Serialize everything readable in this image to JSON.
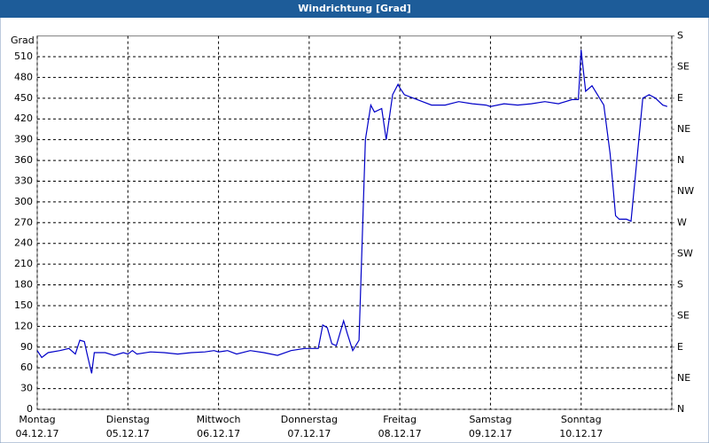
{
  "chart_data": {
    "type": "line",
    "title": "Windrichtung [Grad]",
    "y_label": "Grad",
    "x": [
      0,
      0.05,
      0.12,
      0.25,
      0.35,
      0.42,
      0.47,
      0.52,
      0.55,
      0.6,
      0.63,
      0.75,
      0.85,
      0.95,
      1.0,
      1.05,
      1.1,
      1.25,
      1.4,
      1.55,
      1.7,
      1.85,
      1.95,
      2.0,
      2.1,
      2.2,
      2.35,
      2.5,
      2.65,
      2.8,
      2.95,
      3.0,
      3.1,
      3.15,
      3.2,
      3.25,
      3.3,
      3.38,
      3.42,
      3.48,
      3.55,
      3.62,
      3.68,
      3.72,
      3.8,
      3.85,
      3.92,
      3.98,
      4.0,
      4.05,
      4.15,
      4.25,
      4.35,
      4.5,
      4.65,
      4.8,
      4.95,
      5.0,
      5.15,
      5.3,
      5.45,
      5.6,
      5.75,
      5.9,
      5.97,
      6.0,
      6.05,
      6.12,
      6.25,
      6.32,
      6.38,
      6.42,
      6.5,
      6.55,
      6.68,
      6.75,
      6.82,
      6.9,
      6.95
    ],
    "values": [
      85,
      75,
      82,
      85,
      88,
      80,
      100,
      98,
      80,
      52,
      82,
      82,
      78,
      82,
      80,
      85,
      80,
      83,
      82,
      80,
      82,
      83,
      85,
      83,
      85,
      80,
      85,
      82,
      78,
      85,
      88,
      88,
      88,
      122,
      118,
      95,
      92,
      128,
      110,
      85,
      100,
      390,
      440,
      430,
      435,
      390,
      455,
      470,
      465,
      455,
      450,
      445,
      440,
      440,
      445,
      442,
      440,
      438,
      442,
      440,
      442,
      445,
      442,
      448,
      448,
      520,
      460,
      468,
      440,
      370,
      280,
      275,
      275,
      272,
      450,
      455,
      450,
      440,
      438
    ],
    "color": "#0000c8",
    "xlim": [
      0,
      7
    ],
    "xticks": [
      {
        "value": 0,
        "label": "Montag"
      },
      {
        "value": 1,
        "label": "Dienstag"
      },
      {
        "value": 2,
        "label": "Mittwoch"
      },
      {
        "value": 3,
        "label": "Donnerstag"
      },
      {
        "value": 4,
        "label": "Freitag"
      },
      {
        "value": 5,
        "label": "Samstag"
      },
      {
        "value": 6,
        "label": "Sonntag"
      },
      7
    ],
    "xtick_dates": [
      "04.12.17",
      "05.12.17",
      "06.12.17",
      "07.12.17",
      "08.12.17",
      "09.12.17",
      "10.12.17"
    ],
    "ylim": [
      0,
      540
    ],
    "yticks": [
      0,
      30,
      60,
      90,
      120,
      150,
      180,
      210,
      240,
      270,
      300,
      330,
      360,
      390,
      420,
      450,
      480,
      510
    ],
    "y2lim": [
      0,
      540
    ],
    "y2ticks": [
      {
        "value": 0,
        "label": "N"
      },
      {
        "value": 45,
        "label": "NE"
      },
      {
        "value": 90,
        "label": "E"
      },
      {
        "value": 135,
        "label": "SE"
      },
      {
        "value": 180,
        "label": "S"
      },
      {
        "value": 225,
        "label": "SW"
      },
      {
        "value": 270,
        "label": "W"
      },
      {
        "value": 315,
        "label": "NW"
      },
      {
        "value": 360,
        "label": "N"
      },
      {
        "value": 405,
        "label": "NE"
      },
      {
        "value": 450,
        "label": "E"
      },
      {
        "value": 495,
        "label": "SE"
      },
      {
        "value": 540,
        "label": "S"
      }
    ],
    "grid": true
  }
}
